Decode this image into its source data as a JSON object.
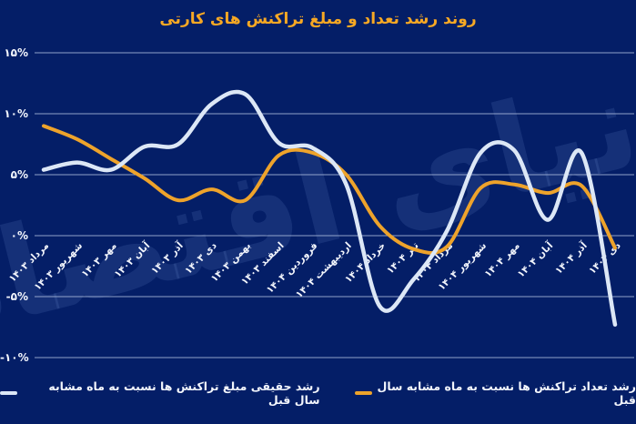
{
  "title": "روند رشد تعداد و مبلغ تراکنش های کارتی",
  "watermark": "دنیای اقتصاد",
  "colors": {
    "background": "#041e67",
    "title": "#f7a824",
    "grid": "#a9b9dc",
    "axis_text": "#f2f5fc",
    "series_count": "#eea32b",
    "series_amount": "#dce7f6"
  },
  "legend": [
    {
      "label": "رشد تعداد تراکنش ها نسبت به ماه مشابه سال قبل",
      "color": "#eea32b"
    },
    {
      "label": "رشد حقیقی مبلغ تراکنش ها نسبت به ماه مشابه سال قبل",
      "color": "#dce7f6"
    }
  ],
  "chart_data": {
    "type": "line",
    "title": "روند رشد تعداد و مبلغ تراکنش های کارتی",
    "categories": [
      "مرداد ۱۴۰۳",
      "شهریور ۱۴۰۳",
      "مهر ۱۴۰۳",
      "آبان ۱۴۰۳",
      "آذر ۱۴۰۳",
      "دی ۱۴۰۳",
      "بهمن ۱۴۰۳",
      "اسفند ۱۴۰۳",
      "فروردین ۱۴۰۴",
      "اردیبهشت ۱۴۰۴",
      "خرداد ۱۴۰۴",
      "تیر ۱۴۰۴",
      "مرداد ۱۴۰۴",
      "شهریور ۱۴۰۴",
      "مهر ۱۴۰۴",
      "آبان ۱۴۰۴",
      "آذر ۱۴۰۴",
      "دی ۱۴۰۴"
    ],
    "series": [
      {
        "name": "رشد تعداد تراکنش ها نسبت به ماه مشابه سال قبل",
        "color": "#eea32b",
        "values": [
          9.0,
          7.9,
          6.3,
          4.7,
          2.9,
          3.8,
          2.9,
          6.6,
          6.8,
          5.0,
          0.8,
          -1.1,
          -0.9,
          3.9,
          4.2,
          3.5,
          4.1,
          -1.0
        ]
      },
      {
        "name": "رشد حقیقی مبلغ تراکنش ها نسبت به ماه مشابه سال قبل",
        "color": "#dce7f6",
        "values": [
          5.4,
          6.0,
          5.4,
          7.3,
          7.5,
          10.8,
          11.6,
          7.6,
          7.2,
          4.2,
          -5.8,
          -3.6,
          0.4,
          6.8,
          7.0,
          1.3,
          6.8,
          -7.3
        ]
      }
    ],
    "y_ticks": [
      "۱۵%",
      "۱۰%",
      "۵%",
      "۰%",
      "-۵%",
      "-۱۰%"
    ],
    "y_tick_values": [
      15,
      10,
      5,
      0,
      -5,
      -10
    ],
    "ylim": [
      -10,
      15
    ],
    "grid": true,
    "x_label_rotation": -45,
    "legend_position": "bottom"
  }
}
